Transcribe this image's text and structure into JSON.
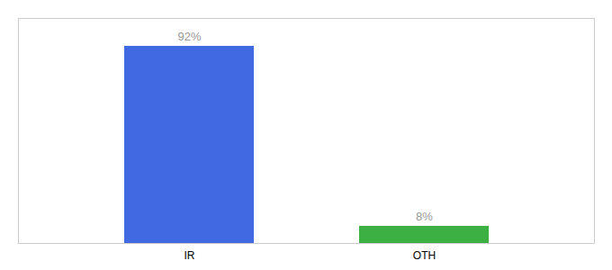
{
  "chart_data": {
    "type": "bar",
    "categories": [
      "IR",
      "OTH"
    ],
    "values": [
      92,
      8
    ],
    "value_labels": [
      "92%",
      "8%"
    ],
    "colors": [
      "#4169e1",
      "#3cb043"
    ],
    "ylim": [
      0,
      105
    ],
    "data_labels": true,
    "tick_labels": "x"
  }
}
